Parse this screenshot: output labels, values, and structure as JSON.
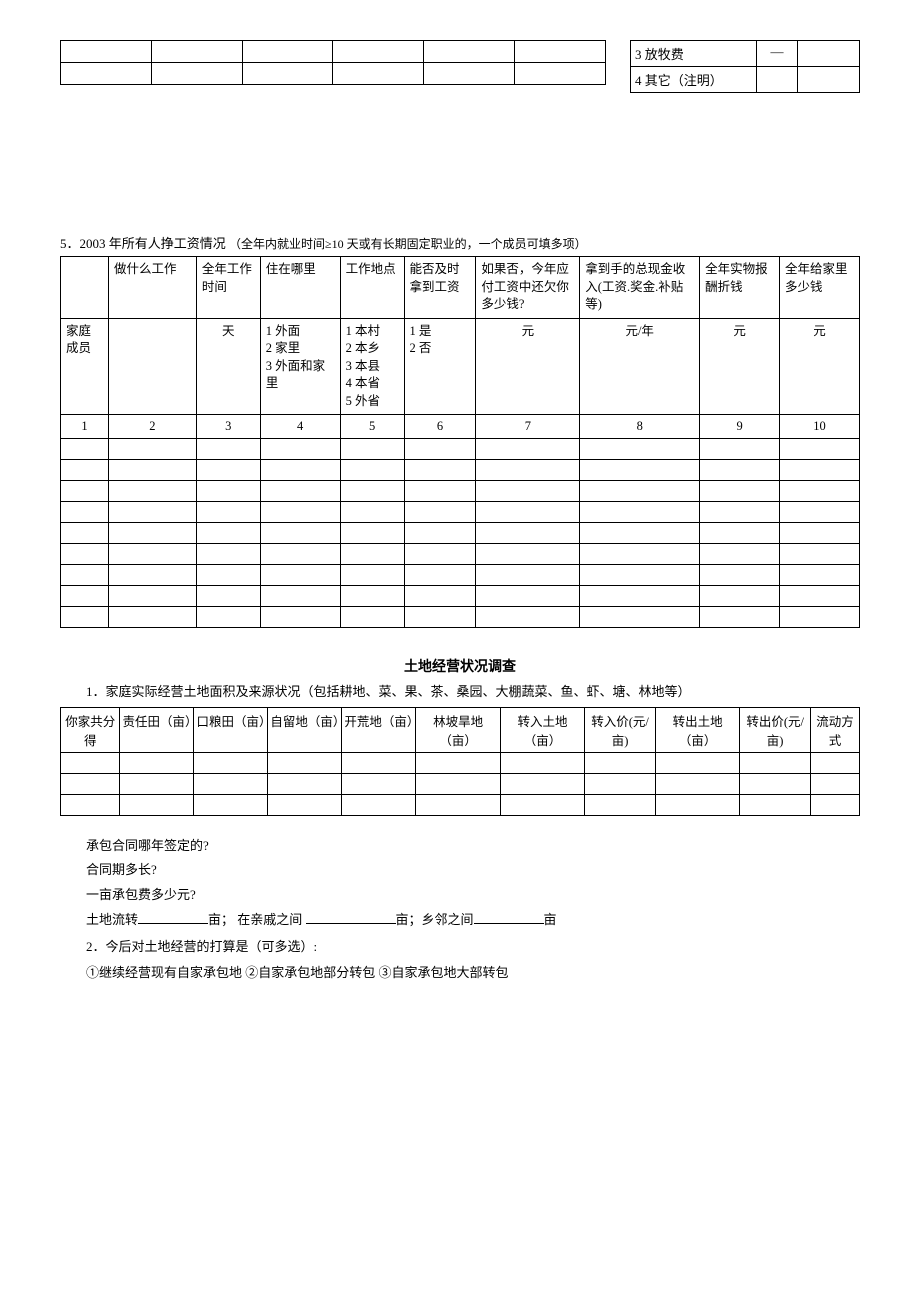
{
  "topRight": {
    "row1_label": "3 放牧费",
    "row1_val": "—",
    "row2_label": "4 其它（注明）"
  },
  "section5": {
    "title_prefix": "5．2003 年所有人挣工资情况",
    "title_note": "（全年内就业时间≥10 天或有长期固定职业的，一个成员可填多项）",
    "headers": {
      "c1": "",
      "c2": "做什么工作",
      "c3": "全年工作时间",
      "c4": "住在哪里",
      "c5": "工作地点",
      "c6": "能否及时拿到工资",
      "c7": "如果否，今年应付工资中还欠你多少钱?",
      "c8": "拿到手的总现金收入(工资.奖金.补贴等)",
      "c9": "全年实物报酬折钱",
      "c10": "全年给家里多少钱"
    },
    "sub": {
      "c1": "家庭成员",
      "c3": "天",
      "c4": "1 外面\n2 家里\n3 外面和家里",
      "c5": "1 本村\n2 本乡\n3 本县\n4 本省\n5 外省",
      "c6": "1 是\n2 否",
      "c7": "元",
      "c8": "元/年",
      "c9": "元",
      "c10": "元"
    },
    "numrow": [
      "1",
      "2",
      "3",
      "4",
      "5",
      "6",
      "7",
      "8",
      "9",
      "10"
    ],
    "datarows": 9
  },
  "land": {
    "heading": "土地经营状况调查",
    "note": "1．家庭实际经营土地面积及来源状况（包括耕地、菜、果、茶、桑园、大棚蔬菜、鱼、虾、塘、林地等）",
    "cols": [
      "你家共分得",
      "责任田（亩）",
      "口粮田（亩）",
      "自留地（亩）",
      "开荒地（亩）",
      "林坡旱地（亩）",
      "转入土地（亩）",
      "转入价(元/亩)",
      "转出土地（亩）",
      "转出价(元/亩)",
      "流动方式"
    ],
    "datarows": 3,
    "q_contract_year": "承包合同哪年签定的?",
    "q_contract_len": "合同期多长?",
    "q_fee": "一亩承包费多少元?",
    "q_flow_a": "土地流转",
    "q_flow_b": "亩；  在亲戚之间 ",
    "q_flow_c": "亩；乡邻之间",
    "q_flow_d": "亩",
    "q2_title": "2．今后对土地经营的打算是（可多选）:",
    "q2_opts": "①继续经营现有自家承包地   ②自家承包地部分转包        ③自家承包地大部转包"
  }
}
